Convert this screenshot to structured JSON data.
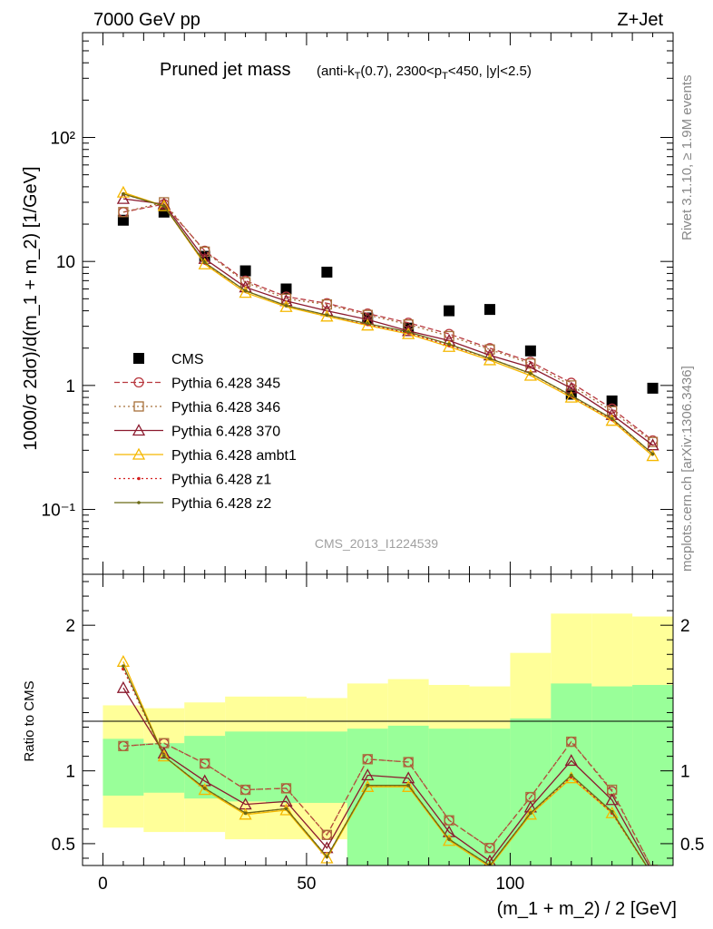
{
  "header": {
    "left": "7000 GeV pp",
    "right": "Z+Jet"
  },
  "side_labels": {
    "rivet": "Rivet 3.1.10, ≥ 1.9M events",
    "mcplots": "mcplots.cern.ch [arXiv:1306.3436]"
  },
  "chart_data": [
    {
      "type": "scatter",
      "title_main": "Pruned jet mass",
      "title_detail_parts": [
        "(anti-k",
        "T",
        "(0.7), 2300<p",
        "T",
        "<450, |y|<2.5)"
      ],
      "ylabel": "1000/σ 2dσ)/d(m_1 + m_2) [1/GeV]",
      "xlim": [
        -5,
        140
      ],
      "ylim": [
        0.03,
        700
      ],
      "yscale": "log",
      "ytick_labels": [
        "10⁻¹",
        "1",
        "10",
        "10²"
      ],
      "ytick_values": [
        0.1,
        1,
        10,
        100
      ],
      "watermark": "CMS_2013_I1224539",
      "legend_position": "left",
      "x": [
        5,
        15,
        25,
        35,
        45,
        55,
        65,
        75,
        85,
        95,
        105,
        115,
        125,
        135
      ],
      "series": [
        {
          "name": "CMS",
          "color": "#000000",
          "marker": "square",
          "line": "none",
          "values": [
            21.5,
            25,
            11,
            8.4,
            6.0,
            8.2,
            3.5,
            2.9,
            4.0,
            4.1,
            1.9,
            0.85,
            0.75,
            0.95
          ]
        },
        {
          "name": "Pythia 6.428 345",
          "color": "#b8383f",
          "marker": "circle-open",
          "line": "dashed",
          "values": [
            25,
            29,
            12.2,
            7.0,
            5.2,
            4.6,
            3.8,
            3.2,
            2.6,
            2.0,
            1.55,
            1.05,
            0.65,
            0.36
          ]
        },
        {
          "name": "Pythia 6.428 346",
          "color": "#a8703a",
          "marker": "square-open",
          "line": "dotted",
          "values": [
            25,
            30,
            12.0,
            6.8,
            5.0,
            4.5,
            3.7,
            3.1,
            2.5,
            1.95,
            1.5,
            1.0,
            0.62,
            0.35
          ]
        },
        {
          "name": "Pythia 6.428 370",
          "color": "#8b1a2e",
          "marker": "triangle-open",
          "line": "solid",
          "values": [
            32,
            29,
            10.5,
            6.2,
            4.8,
            4.0,
            3.4,
            2.75,
            2.3,
            1.75,
            1.4,
            0.95,
            0.58,
            0.33
          ]
        },
        {
          "name": "Pythia 6.428 ambt1",
          "color": "#f5b800",
          "marker": "triangle-open",
          "line": "solid",
          "values": [
            36,
            28,
            9.5,
            5.6,
            4.3,
            3.6,
            3.05,
            2.6,
            2.05,
            1.6,
            1.2,
            0.8,
            0.52,
            0.27
          ]
        },
        {
          "name": "Pythia 6.428 z1",
          "color": "#d42020",
          "marker": "dot",
          "line": "dotted",
          "values": [
            35,
            28,
            9.7,
            5.8,
            4.4,
            3.7,
            3.1,
            2.65,
            2.1,
            1.65,
            1.25,
            0.82,
            0.53,
            0.28
          ]
        },
        {
          "name": "Pythia 6.428 z2",
          "color": "#6b6a14",
          "marker": "dot",
          "line": "solid",
          "values": [
            35,
            28,
            9.8,
            5.8,
            4.4,
            3.7,
            3.15,
            2.7,
            2.15,
            1.65,
            1.25,
            0.83,
            0.54,
            0.28
          ]
        }
      ]
    },
    {
      "type": "line",
      "ylabel": "Ratio to CMS",
      "xlabel": "(m_1 + m_2) / 2 [GeV]",
      "xlim": [
        -5,
        140
      ],
      "ylim": [
        0.35,
        2.35
      ],
      "xtick_labels": [
        "0",
        "50",
        "100"
      ],
      "xtick_values": [
        0,
        50,
        100
      ],
      "ytick_labels": [
        "0.5",
        "1",
        "2"
      ],
      "ytick_values": [
        0.5,
        1,
        2
      ],
      "bands": {
        "x_edges": [
          0,
          10,
          20,
          30,
          40,
          50,
          60,
          70,
          80,
          90,
          100,
          110,
          120,
          130,
          140
        ],
        "yellow_low": [
          0.61,
          0.58,
          0.58,
          0.53,
          0.53,
          0.53,
          0.32,
          0.3,
          0.3,
          0.3,
          0.3,
          0.3,
          0.3,
          0.3
        ],
        "yellow_high": [
          1.45,
          1.43,
          1.47,
          1.51,
          1.51,
          1.5,
          1.6,
          1.63,
          1.59,
          1.58,
          1.81,
          2.08,
          2.08,
          2.06
        ],
        "green_low": [
          0.83,
          0.85,
          0.81,
          0.79,
          0.78,
          0.78,
          0.3,
          0.3,
          0.3,
          0.3,
          0.3,
          0.3,
          0.3,
          0.3
        ],
        "green_high": [
          1.22,
          1.19,
          1.24,
          1.27,
          1.27,
          1.27,
          1.29,
          1.31,
          1.29,
          1.29,
          1.36,
          1.6,
          1.58,
          1.59
        ]
      },
      "ratio_series": [
        {
          "name": "Pythia 6.428 345",
          "values": [
            1.17,
            1.19,
            1.05,
            0.87,
            0.88,
            0.56,
            1.08,
            1.06,
            0.66,
            0.47,
            0.82,
            1.2,
            0.86,
            0.32
          ]
        },
        {
          "name": "Pythia 6.428 346",
          "values": [
            1.17,
            1.19,
            1.05,
            0.87,
            0.88,
            0.56,
            1.08,
            1.06,
            0.66,
            0.47,
            0.82,
            1.2,
            0.87,
            0.32
          ]
        },
        {
          "name": "Pythia 6.428 370",
          "values": [
            1.57,
            1.12,
            0.93,
            0.77,
            0.79,
            0.47,
            0.97,
            0.95,
            0.58,
            0.38,
            0.75,
            1.07,
            0.8,
            0.3
          ]
        },
        {
          "name": "Pythia 6.428 ambt1",
          "values": [
            1.75,
            1.1,
            0.87,
            0.7,
            0.73,
            0.4,
            0.89,
            0.89,
            0.52,
            0.34,
            0.7,
            0.95,
            0.71,
            0.28
          ]
        },
        {
          "name": "Pythia 6.428 z1",
          "values": [
            1.7,
            1.1,
            0.88,
            0.71,
            0.74,
            0.41,
            0.9,
            0.9,
            0.53,
            0.35,
            0.71,
            0.96,
            0.71,
            0.28
          ]
        },
        {
          "name": "Pythia 6.428 z2",
          "values": [
            1.72,
            1.1,
            0.88,
            0.71,
            0.74,
            0.41,
            0.9,
            0.9,
            0.53,
            0.35,
            0.71,
            0.97,
            0.72,
            0.28
          ]
        }
      ]
    }
  ]
}
